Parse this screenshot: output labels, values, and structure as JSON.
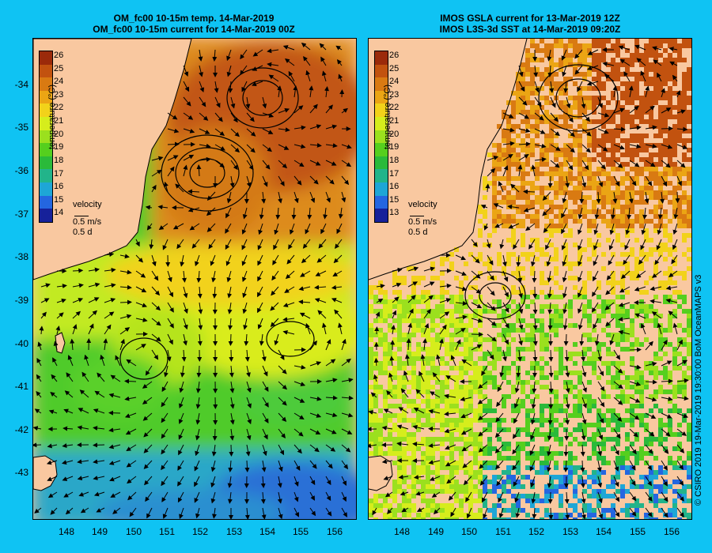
{
  "left_panel": {
    "title_line1": "OM_fc00 10-15m temp. 14-Mar-2019",
    "title_line2": "OM_fc00 10-15m current for 14-Mar-2019 00Z",
    "colorbar_labels": [
      "26",
      "25",
      "24",
      "23",
      "22",
      "21",
      "20",
      "19",
      "18",
      "17",
      "16",
      "15",
      "14"
    ],
    "colorbar_title": "temperature (°C)",
    "velocity_label": "velocity",
    "velocity_scale": "0.5 m/s",
    "velocity_time": "0.5 d"
  },
  "right_panel": {
    "title_line1": "IMOS GSLA current for 13-Mar-2019 12Z",
    "title_line2": "IMOS L3S-3d SST at 14-Mar-2019 09:20Z",
    "colorbar_labels": [
      "26",
      "25",
      "24",
      "23",
      "22",
      "21",
      "20",
      "19",
      "18",
      "17",
      "16",
      "15",
      "13"
    ],
    "colorbar_title": "temperature (°C)",
    "velocity_label": "velocity",
    "velocity_scale": "0.5 m/s",
    "velocity_time": "0.5 d"
  },
  "y_axis_labels": [
    "-34",
    "-35",
    "-36",
    "-37",
    "-38",
    "-39",
    "-40",
    "-41",
    "-42",
    "-43"
  ],
  "x_axis_labels": [
    "148",
    "149",
    "150",
    "151",
    "152",
    "153",
    "154",
    "155",
    "156"
  ],
  "copyright": "© CSIRO 2019   19-Mar-2019 19:30:00 BoM OceanMAPS v3",
  "colors": {
    "background": "#0fc3f3",
    "land": "#f9c8a0",
    "colorbar": [
      "#9b2a0a",
      "#c2520f",
      "#d97a12",
      "#eba514",
      "#f2d21a",
      "#d6ed1c",
      "#9be01e",
      "#55cf1e",
      "#2aba3a",
      "#22b48a",
      "#1ea6d6",
      "#2466e0",
      "#16219a"
    ]
  }
}
